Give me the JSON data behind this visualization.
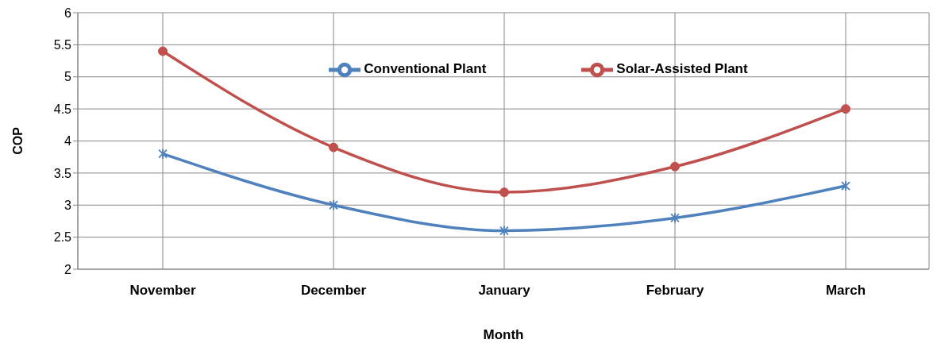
{
  "chart_data": {
    "type": "line",
    "xlabel": "Month",
    "ylabel": "COP",
    "categories": [
      "November",
      "December",
      "January",
      "February",
      "March"
    ],
    "series": [
      {
        "name": "Conventional Plant",
        "color": "#4f81bd",
        "marker": "cross",
        "values": [
          3.8,
          3.0,
          2.6,
          2.8,
          3.3
        ]
      },
      {
        "name": "Solar-Assisted Plant",
        "color": "#c0504d",
        "marker": "circle",
        "values": [
          5.4,
          3.9,
          3.2,
          3.6,
          4.5
        ]
      }
    ],
    "ylim": [
      2,
      6
    ],
    "yticks": [
      2,
      2.5,
      3,
      3.5,
      4,
      4.5,
      5,
      5.5,
      6
    ],
    "grid": true,
    "legend": "top",
    "line_style": "solid"
  }
}
